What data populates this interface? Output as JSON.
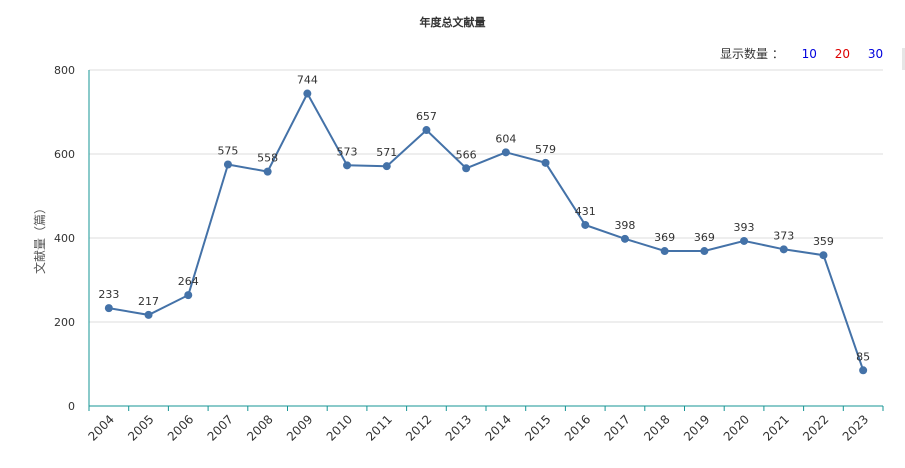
{
  "chart_data": {
    "type": "line",
    "title": "年度总文献量",
    "ylabel": "文献量（篇）",
    "xlabel": "",
    "x": [
      "2004",
      "2005",
      "2006",
      "2007",
      "2008",
      "2009",
      "2010",
      "2011",
      "2012",
      "2013",
      "2014",
      "2015",
      "2016",
      "2017",
      "2018",
      "2019",
      "2020",
      "2021",
      "2022",
      "2023"
    ],
    "values": [
      233,
      217,
      264,
      575,
      558,
      744,
      573,
      571,
      657,
      566,
      604,
      579,
      431,
      398,
      369,
      369,
      393,
      373,
      359,
      85
    ],
    "ylim": [
      0,
      800
    ],
    "yticks": [
      "0",
      "200",
      "400",
      "600",
      "800"
    ],
    "grid": true,
    "line_color": "#4472a8",
    "axis_color": "#169494"
  },
  "display_count": {
    "label": "显示数量 ：",
    "options": [
      {
        "label": "10",
        "color": "#0000dd"
      },
      {
        "label": "20",
        "color": "#dd0000"
      },
      {
        "label": "30",
        "color": "#0000dd"
      }
    ]
  }
}
